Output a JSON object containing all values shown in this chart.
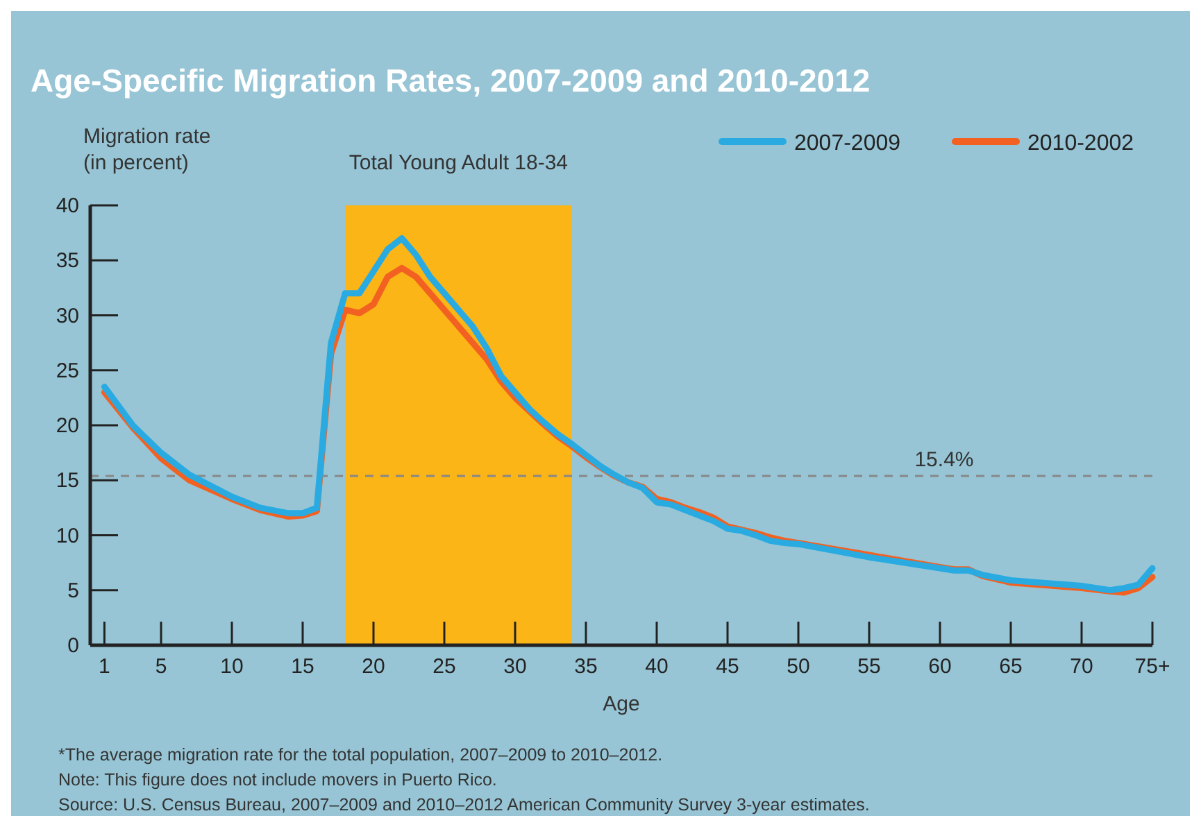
{
  "chart_data": {
    "type": "line",
    "title": "Age-Specific Migration Rates, 2007-2009 and 2010-2012",
    "xlabel": "Age",
    "ylabel": "Migration rate\n(in percent)",
    "x": [
      1,
      3,
      5,
      7,
      10,
      12,
      14,
      15,
      16,
      17,
      18,
      19,
      20,
      21,
      22,
      23,
      24,
      25,
      26,
      27,
      28,
      29,
      30,
      31,
      32,
      33,
      34,
      35,
      36,
      37,
      38,
      39,
      40,
      41,
      42,
      43,
      44,
      45,
      46,
      47,
      48,
      49,
      50,
      55,
      60,
      61,
      62,
      63,
      65,
      70,
      72,
      73,
      74,
      75
    ],
    "series": [
      {
        "name": "2007-2009",
        "color": "#29abe2",
        "values": [
          23.5,
          20,
          17.5,
          15.5,
          13.5,
          12.5,
          12,
          12,
          12.5,
          27.5,
          32,
          32,
          34,
          36,
          37,
          35.5,
          33.5,
          32,
          30.5,
          29,
          27,
          24.5,
          23,
          21.5,
          20.3,
          19.2,
          18.3,
          17.3,
          16.3,
          15.5,
          14.8,
          14.3,
          13,
          12.8,
          12.3,
          11.8,
          11.3,
          10.6,
          10.4,
          10,
          9.5,
          9.3,
          9.2,
          8,
          7,
          6.8,
          6.8,
          6.4,
          5.9,
          5.4,
          5,
          5.2,
          5.5,
          7
        ]
      },
      {
        "name": "2010-2002",
        "color": "#f26122",
        "values": [
          23,
          19.8,
          17,
          15,
          13.3,
          12.3,
          11.7,
          11.8,
          12.2,
          26.5,
          30.5,
          30.2,
          31,
          33.5,
          34.3,
          33.5,
          32,
          30.5,
          29,
          27.5,
          26,
          24,
          22.5,
          21.3,
          20.1,
          19,
          18.1,
          17.1,
          16.2,
          15.4,
          14.8,
          14.4,
          13.3,
          13,
          12.5,
          12.1,
          11.6,
          10.8,
          10.5,
          10.2,
          9.8,
          9.5,
          9.3,
          8.2,
          7.1,
          6.9,
          6.9,
          6.3,
          5.7,
          5.2,
          4.9,
          4.8,
          5.2,
          6.2
        ]
      }
    ],
    "xlim": [
      0,
      75
    ],
    "xticks": [
      1,
      5,
      10,
      15,
      20,
      25,
      30,
      35,
      40,
      45,
      50,
      55,
      60,
      65,
      70,
      {
        "value": 75,
        "label": "75+"
      }
    ],
    "ylim": [
      0,
      40
    ],
    "yticks": [
      0,
      5,
      10,
      15,
      20,
      25,
      30,
      35,
      40
    ],
    "ref_lines": [
      {
        "axis": "y",
        "value": 15.4,
        "label": "15.4%",
        "color": "#888888",
        "line_style": "dashed"
      }
    ],
    "bands": [
      {
        "axis": "x",
        "from": 18,
        "to": 34,
        "label": "Total Young Adult 18-34",
        "color": "#fbb517"
      }
    ],
    "legend": "top right",
    "grid": false,
    "marker": "none",
    "line_style": "solid",
    "annotations": [
      "*The average migration rate for the total population, 2007–2009 to 2010–2012.",
      "Note: This figure does not include movers in Puerto Rico.",
      "Source: U.S. Census Bureau, 2007–2009 and 2010–2012 American Community Survey 3-year estimates."
    ]
  }
}
